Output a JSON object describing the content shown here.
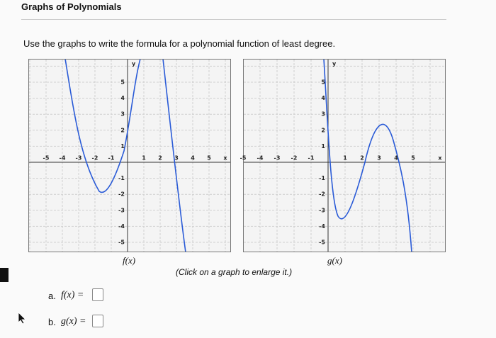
{
  "header": {
    "title": "Graphs of Polynomials"
  },
  "prompt": "Use the graphs to write the formula for a polynomial function of least degree.",
  "graphs": [
    {
      "x_ticks": [
        -5,
        -4,
        -3,
        -2,
        -1,
        1,
        2,
        3,
        4,
        5
      ],
      "y_ticks": [
        -5,
        -4,
        -3,
        -2,
        -1,
        1,
        2,
        3,
        4,
        5
      ],
      "x_axis_label": "x",
      "y_axis_label": "y",
      "caption": "f(x)"
    },
    {
      "x_ticks": [
        -5,
        -4,
        -3,
        -2,
        -1,
        1,
        2,
        3,
        4,
        5
      ],
      "y_ticks": [
        -5,
        -4,
        -3,
        -2,
        -1,
        1,
        2,
        3,
        4,
        5
      ],
      "x_axis_label": "x",
      "y_axis_label": "y",
      "caption": "g(x)"
    }
  ],
  "note": "(Click on a graph to enlarge it.)",
  "answers": [
    {
      "label": "a.",
      "function": "f(x) ="
    },
    {
      "label": "b.",
      "function": "g(x) ="
    }
  ]
}
